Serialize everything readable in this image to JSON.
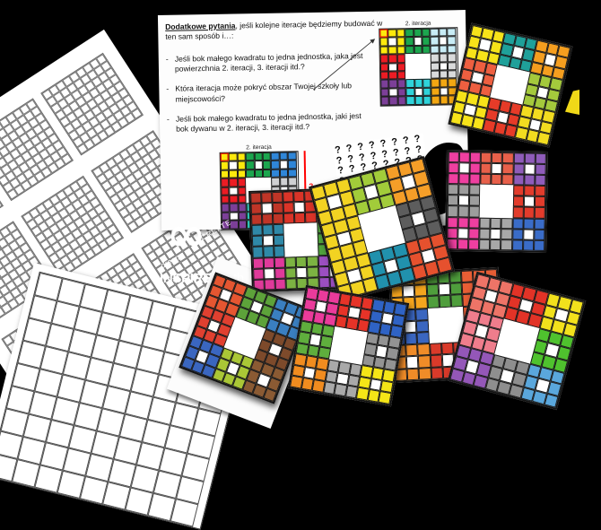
{
  "worksheet": {
    "title_bold": "Dodatkowe pytania",
    "title_rest": ", jeśli kolejne iteracje będziemy budować w ten sam sposób i…:",
    "bullet": "-",
    "questions": [
      "Jeśli bok małego kwadratu to jedna jednostka, jaka jest powierzchnia 2. iteracji, 3. iteracji itd.?",
      "Która iteracja może pokryć obszar Twojej szkoły lub miejscowości?",
      "Jeśli bok małego kwadratu to jedna jednostka, jaki jest bok dywanu w 2. iteracji, 3. iteracji itd.?"
    ],
    "grid1": {
      "label": "2. iteracja",
      "highlight": "0,0",
      "blocks": [
        [
          "#fde90c",
          "#1ca64e",
          "#c8ecf6"
        ],
        [
          "#ec1c24",
          "#ffffff",
          "#d9dadb"
        ],
        [
          "#7c3f98",
          "#2fd3da",
          "#f3a712"
        ]
      ]
    },
    "grid2": {
      "label": "2. iteracja",
      "side_question": "?",
      "highlight": "0,0",
      "blocks": [
        [
          "#fde90c",
          "#1ca64e",
          "#2f86d8"
        ],
        [
          "#ec1c24",
          "#ffffff",
          "#cfd0d2"
        ],
        [
          "#7c3f98",
          "#2fd3c3",
          "#f3a712"
        ]
      ]
    },
    "highlight_color": "#ff0000"
  },
  "logo": {
    "infinity": "∞",
    "dream": "dream",
    "create": "CREATE",
    "brand": "INSPIRE",
    "brand_suffix": " math"
  },
  "question_paper": {
    "pattern": "? ? ? ? ? ? ? ? ? ? ? ? ? ? ? ? ? ? ? ? ? ? ? ? ? ? ?"
  },
  "fine_print": "…of page 2 for … on this page",
  "edge_fragment": {
    "color": "#f0d818"
  },
  "carpets": [
    {
      "id": "carpet-top-right",
      "blocks": [
        [
          "#f7e319",
          "#1fa09a",
          "#f59e1f"
        ],
        [
          "#ee5f40",
          "#ffffff",
          "#a4c93c"
        ],
        [
          "#f7e319",
          "#e63b28",
          "#f2dc20"
        ]
      ]
    },
    {
      "id": "carpet-right-middle",
      "blocks": [
        [
          "#ef3fa0",
          "#e8604a",
          "#8f5cba"
        ],
        [
          "#9d9d9d",
          "#ffffff",
          "#e23c2c"
        ],
        [
          "#ef3fa0",
          "#a8a8a8",
          "#3a6cc8"
        ]
      ]
    },
    {
      "id": "carpet-center",
      "blocks": [
        [
          "#f2d322",
          "#a2cc3a",
          "#f59e28"
        ],
        [
          "#f2d322",
          "#ffffff",
          "#5d5d5d"
        ],
        [
          "#f2d322",
          "#2191ad",
          "#e6512e"
        ]
      ]
    },
    {
      "id": "carpet-center-left",
      "blocks": [
        [
          "#bf3527",
          "#da3428",
          "#c93a2c"
        ],
        [
          "#2f89a8",
          "#ffffff",
          "#4fa23c"
        ],
        [
          "#df3a9a",
          "#7cb342",
          "#9b4fc0"
        ]
      ]
    },
    {
      "id": "carpet-bottom-left",
      "blocks": [
        [
          "#e55631",
          "#5da23a",
          "#3a7fc1"
        ],
        [
          "#e04030",
          "#ffffff",
          "#7d4a2b"
        ],
        [
          "#3a66c0",
          "#aac736",
          "#8a5a33"
        ]
      ]
    },
    {
      "id": "carpet-bottom-middle",
      "blocks": [
        [
          "#ea3b9b",
          "#e63328",
          "#2f63c5"
        ],
        [
          "#5fae3d",
          "#ffffff",
          "#939393"
        ],
        [
          "#f18c1f",
          "#a9a9a9",
          "#f5e517"
        ]
      ]
    },
    {
      "id": "carpet-bottom-right-back",
      "blocks": [
        [
          "#f5a51e",
          "#4f9e3c",
          "#e85e35"
        ],
        [
          "#3a66c0",
          "#ffffff",
          "#e8562e"
        ],
        [
          "#f08c28",
          "#da3a2a",
          "#f5a51e"
        ]
      ]
    },
    {
      "id": "carpet-bottom-right-front",
      "blocks": [
        [
          "#ee7467",
          "#e23327",
          "#f2e11c"
        ],
        [
          "#ef7d8c",
          "#ffffff",
          "#4fc22e"
        ],
        [
          "#9457b8",
          "#8e8e8e",
          "#5aa7dc"
        ]
      ]
    }
  ]
}
